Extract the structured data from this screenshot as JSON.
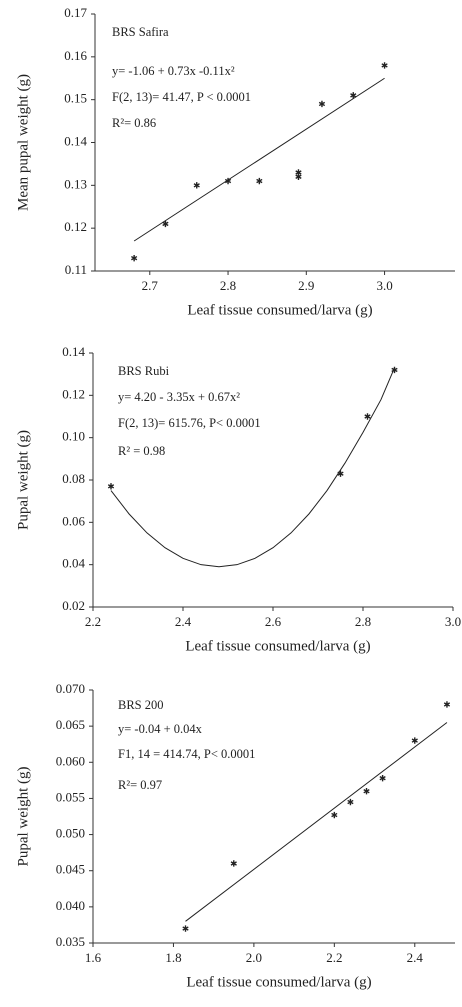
{
  "chart_data": [
    {
      "type": "scatter",
      "xlabel": "Leaf tissue consumed/larva (g)",
      "ylabel": "Mean pupal weight (g)",
      "annotations": [
        "BRS Safira",
        "y= -1.06 + 0.73x -0.11x²",
        "F(2, 13)= 41.47, P < 0.0001",
        "R²= 0.86"
      ],
      "x": [
        2.68,
        2.72,
        2.76,
        2.8,
        2.84,
        2.89,
        2.89,
        2.92,
        2.96,
        3.0
      ],
      "values": [
        0.113,
        0.121,
        0.13,
        0.131,
        0.131,
        0.133,
        0.132,
        0.149,
        0.151,
        0.158
      ],
      "fit": {
        "x": [
          2.68,
          3.0
        ],
        "values": [
          0.117,
          0.155
        ]
      },
      "color": "#222",
      "xlim": [
        2.63,
        3.09
      ],
      "ylim": [
        0.11,
        0.17
      ],
      "xticks": [
        2.7,
        2.8,
        2.9,
        {
          "value": 3.0,
          "label": "3.0"
        }
      ],
      "yticks": [
        0.11,
        0.12,
        0.13,
        0.14,
        0.15,
        0.16,
        0.17
      ]
    },
    {
      "type": "scatter",
      "xlabel": "Leaf tissue consumed/larva (g)",
      "ylabel": "Pupal weight (g)",
      "annotations": [
        "BRS Rubi",
        "y= 4.20 - 3.35x + 0.67x²",
        "F(2, 13)= 615.76, P< 0.0001",
        "R² = 0.98"
      ],
      "x": [
        2.24,
        2.75,
        2.81,
        2.87
      ],
      "values": [
        0.077,
        0.083,
        0.11,
        0.132
      ],
      "fit": {
        "x": [
          2.24,
          2.28,
          2.32,
          2.36,
          2.4,
          2.44,
          2.48,
          2.52,
          2.56,
          2.6,
          2.64,
          2.68,
          2.72,
          2.76,
          2.8,
          2.84,
          2.87
        ],
        "values": [
          0.075,
          0.064,
          0.055,
          0.048,
          0.043,
          0.04,
          0.039,
          0.04,
          0.043,
          0.048,
          0.055,
          0.064,
          0.075,
          0.088,
          0.1025,
          0.118,
          0.133
        ]
      },
      "color": "#222",
      "xlim": [
        2.2,
        3.0
      ],
      "ylim": [
        0.02,
        0.14
      ],
      "xticks": [
        2.2,
        2.4,
        2.6,
        2.8,
        {
          "value": 3.0,
          "label": "3.0"
        }
      ],
      "yticks": [
        0.02,
        0.04,
        0.06,
        0.08,
        {
          "value": 0.1,
          "label": "0.10"
        },
        0.12,
        0.14
      ]
    },
    {
      "type": "scatter",
      "xlabel": "Leaf tissue consumed/larva (g)",
      "ylabel": "Pupal weight (g)",
      "annotations": [
        "BRS 200",
        "y= -0.04 + 0.04x",
        "F1, 14 = 414.74, P< 0.0001",
        "R²= 0.97"
      ],
      "x": [
        1.83,
        1.95,
        2.2,
        2.24,
        2.28,
        2.32,
        2.4,
        2.48
      ],
      "values": [
        0.037,
        0.046,
        0.0527,
        0.0545,
        0.056,
        0.0578,
        0.063,
        0.068
      ],
      "fit": {
        "x": [
          1.83,
          2.48
        ],
        "values": [
          0.038,
          0.0655
        ]
      },
      "color": "#222",
      "xlim": [
        1.6,
        2.5
      ],
      "ylim": [
        0.035,
        0.07
      ],
      "xticks": [
        1.6,
        1.8,
        {
          "value": 2.0,
          "label": "2.0"
        },
        2.2,
        2.4
      ],
      "yticks": [
        0.035,
        {
          "value": 0.04,
          "label": "0.040"
        },
        0.045,
        {
          "value": 0.05,
          "label": "0.050"
        },
        0.055,
        {
          "value": 0.06,
          "label": "0.060"
        },
        0.065,
        {
          "value": 0.07,
          "label": "0.070"
        }
      ]
    }
  ]
}
